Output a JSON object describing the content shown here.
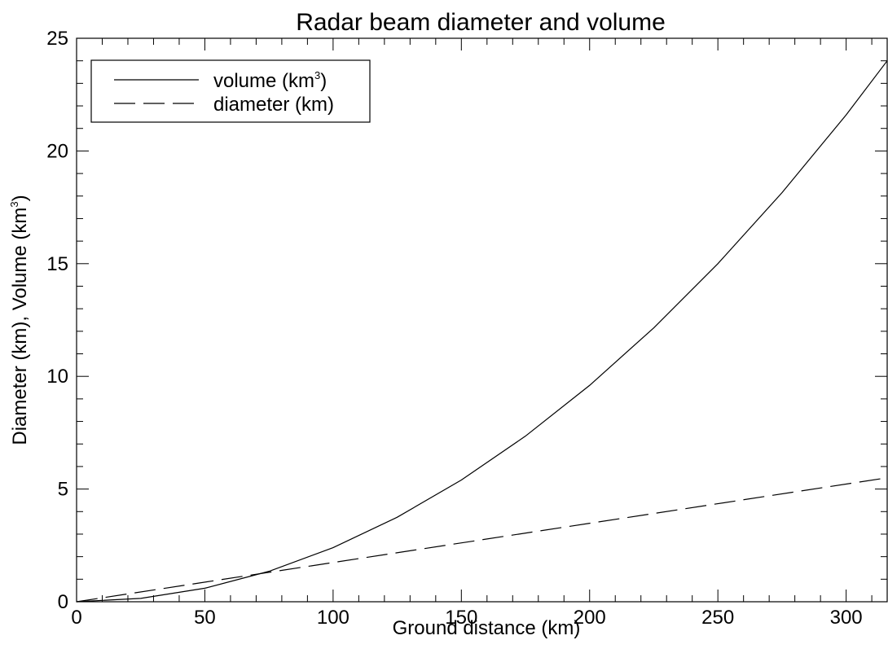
{
  "chart_data": {
    "type": "line",
    "title": "Radar beam diameter and volume",
    "xlabel": "Ground distance (km)",
    "ylabel": {
      "base": "Diameter (km), Volume (km",
      "sup": "3",
      "end": ")"
    },
    "xlim": [
      0,
      316
    ],
    "ylim": [
      0,
      25
    ],
    "x_ticks": [
      0,
      50,
      100,
      150,
      200,
      250,
      300
    ],
    "y_ticks": [
      0,
      5,
      10,
      15,
      20,
      25
    ],
    "x_tick_labels": [
      "0",
      "50",
      "100",
      "150",
      "200",
      "250",
      "300"
    ],
    "y_tick_labels": [
      "0",
      "5",
      "10",
      "15",
      "20",
      "25"
    ],
    "grid": false,
    "legend_position": "top-left",
    "series": [
      {
        "name": {
          "base": "volume (km",
          "sup": "3",
          "end": ")"
        },
        "style": "solid",
        "x": [
          0,
          25,
          50,
          75,
          100,
          125,
          150,
          175,
          200,
          225,
          250,
          275,
          300,
          316
        ],
        "y": [
          0,
          0.15,
          0.6,
          1.35,
          2.4,
          3.75,
          5.4,
          7.35,
          9.6,
          12.15,
          15.0,
          18.15,
          21.6,
          24.0
        ]
      },
      {
        "name": "diameter (km)",
        "style": "dashed",
        "x": [
          0,
          316
        ],
        "y": [
          0,
          5.5
        ]
      }
    ]
  }
}
